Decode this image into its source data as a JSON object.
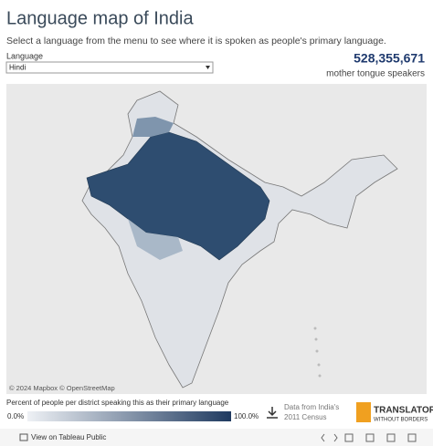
{
  "header": {
    "title": "Language map of India",
    "subtitle": "Select a language from the menu to see where it is spoken as people's primary language."
  },
  "filter": {
    "label": "Language",
    "selected": "Hindi"
  },
  "summary": {
    "count": "528,355,671",
    "caption": "mother tongue speakers"
  },
  "map": {
    "attribution": "© 2024 Mapbox © OpenStreetMap"
  },
  "legend": {
    "title": "Percent of people per district speaking this as their primary language",
    "min": "0.0%",
    "max": "100.0%"
  },
  "source": {
    "line1": "Data from India's",
    "line2": "2011 Census"
  },
  "logo": {
    "line1": "TRANSLATORS",
    "line2": "WITHOUT BORDERS"
  },
  "footer": {
    "link": "View on Tableau Public"
  }
}
